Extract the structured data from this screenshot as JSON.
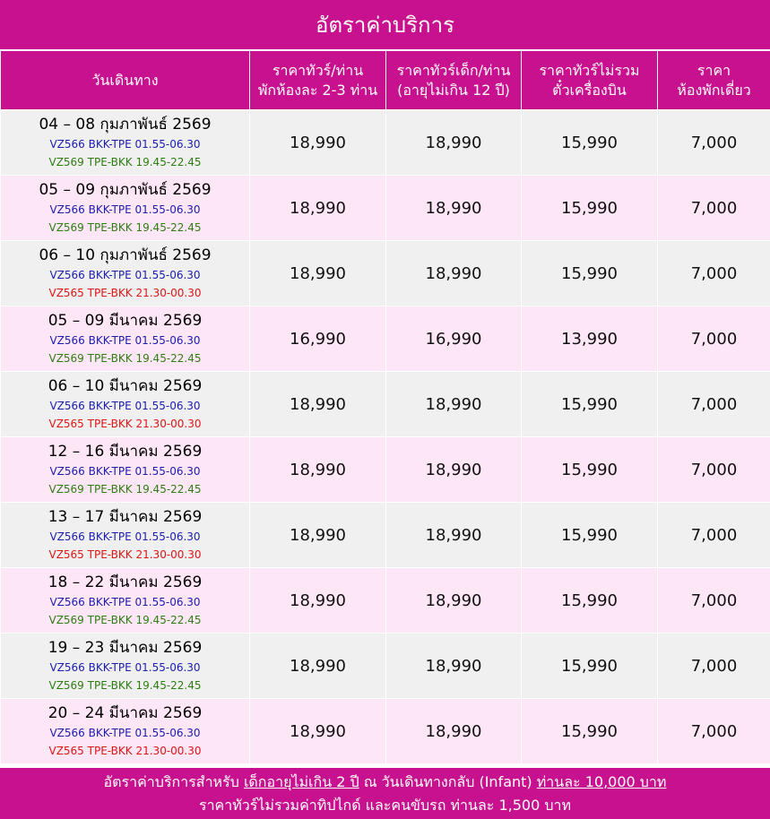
{
  "header": {
    "title": "อัตราค่าบริการ"
  },
  "table": {
    "columns": [
      {
        "lines": [
          "วันเดินทาง"
        ]
      },
      {
        "lines": [
          "ราคาทัวร์/ท่าน",
          "พักห้องละ 2-3 ท่าน"
        ]
      },
      {
        "lines": [
          "ราคาทัวร์เด็ก/ท่าน",
          "(อายุไม่เกิน 12 ปี)"
        ]
      },
      {
        "lines": [
          "ราคาทัวร์ไม่รวม",
          "ตั๋วเครื่องบิน"
        ]
      },
      {
        "lines": [
          "ราคา",
          "ห้องพักเดี่ยว"
        ]
      }
    ],
    "rows": [
      {
        "date": "04 – 08 กุมภาพันธ์ 2569",
        "flights": [
          {
            "text": "VZ566 BKK-TPE 01.55-06.30",
            "color": "#1c1cb0"
          },
          {
            "text": "VZ569 TPE-BKK 19.45-22.45",
            "color": "#2e7d12"
          }
        ],
        "prices": [
          "18,990",
          "18,990",
          "15,990",
          "7,000"
        ]
      },
      {
        "date": "05 – 09 กุมภาพันธ์ 2569",
        "flights": [
          {
            "text": "VZ566 BKK-TPE 01.55-06.30",
            "color": "#1c1cb0"
          },
          {
            "text": "VZ569 TPE-BKK 19.45-22.45",
            "color": "#2e7d12"
          }
        ],
        "prices": [
          "18,990",
          "18,990",
          "15,990",
          "7,000"
        ]
      },
      {
        "date": "06 – 10 กุมภาพันธ์ 2569",
        "flights": [
          {
            "text": "VZ566 BKK-TPE 01.55-06.30",
            "color": "#1c1cb0"
          },
          {
            "text": "VZ565 TPE-BKK 21.30-00.30",
            "color": "#e01414"
          }
        ],
        "prices": [
          "18,990",
          "18,990",
          "15,990",
          "7,000"
        ]
      },
      {
        "date": "05 – 09 มีนาคม 2569",
        "flights": [
          {
            "text": "VZ566 BKK-TPE 01.55-06.30",
            "color": "#1c1cb0"
          },
          {
            "text": "VZ569 TPE-BKK 19.45-22.45",
            "color": "#2e7d12"
          }
        ],
        "prices": [
          "16,990",
          "16,990",
          "13,990",
          "7,000"
        ]
      },
      {
        "date": "06 – 10 มีนาคม 2569",
        "flights": [
          {
            "text": "VZ566 BKK-TPE 01.55-06.30",
            "color": "#1c1cb0"
          },
          {
            "text": "VZ565 TPE-BKK 21.30-00.30",
            "color": "#e01414"
          }
        ],
        "prices": [
          "18,990",
          "18,990",
          "15,990",
          "7,000"
        ]
      },
      {
        "date": "12 – 16 มีนาคม 2569",
        "flights": [
          {
            "text": "VZ566 BKK-TPE 01.55-06.30",
            "color": "#1c1cb0"
          },
          {
            "text": "VZ569 TPE-BKK 19.45-22.45",
            "color": "#2e7d12"
          }
        ],
        "prices": [
          "18,990",
          "18,990",
          "15,990",
          "7,000"
        ]
      },
      {
        "date": "13 – 17 มีนาคม 2569",
        "flights": [
          {
            "text": "VZ566 BKK-TPE 01.55-06.30",
            "color": "#1c1cb0"
          },
          {
            "text": "VZ565 TPE-BKK 21.30-00.30",
            "color": "#e01414"
          }
        ],
        "prices": [
          "18,990",
          "18,990",
          "15,990",
          "7,000"
        ]
      },
      {
        "date": "18 – 22 มีนาคม 2569",
        "flights": [
          {
            "text": "VZ566 BKK-TPE 01.55-06.30",
            "color": "#1c1cb0"
          },
          {
            "text": "VZ569 TPE-BKK 19.45-22.45",
            "color": "#2e7d12"
          }
        ],
        "prices": [
          "18,990",
          "18,990",
          "15,990",
          "7,000"
        ]
      },
      {
        "date": "19 – 23 มีนาคม 2569",
        "flights": [
          {
            "text": "VZ566 BKK-TPE 01.55-06.30",
            "color": "#1c1cb0"
          },
          {
            "text": "VZ569 TPE-BKK 19.45-22.45",
            "color": "#2e7d12"
          }
        ],
        "prices": [
          "18,990",
          "18,990",
          "15,990",
          "7,000"
        ]
      },
      {
        "date": "20 – 24 มีนาคม 2569",
        "flights": [
          {
            "text": "VZ566 BKK-TPE 01.55-06.30",
            "color": "#1c1cb0"
          },
          {
            "text": "VZ565 TPE-BKK 21.30-00.30",
            "color": "#e01414"
          }
        ],
        "prices": [
          "18,990",
          "18,990",
          "15,990",
          "7,000"
        ]
      }
    ]
  },
  "footer": {
    "lines": [
      [
        {
          "text": "อัตราค่าบริการสำหรับ ",
          "underline": false
        },
        {
          "text": "เด็กอายุไม่เกิน 2 ปี",
          "underline": true
        },
        {
          "text": " ณ วันเดินทางกลับ (Infant) ",
          "underline": false
        },
        {
          "text": "ท่านละ 10,000 บาท",
          "underline": true
        }
      ],
      [
        {
          "text": "ราคาทัวร์ไม่รวมค่าทิปไกด์ และคนขับรถ ท่านละ 1,500 บาท",
          "underline": false
        }
      ]
    ]
  }
}
